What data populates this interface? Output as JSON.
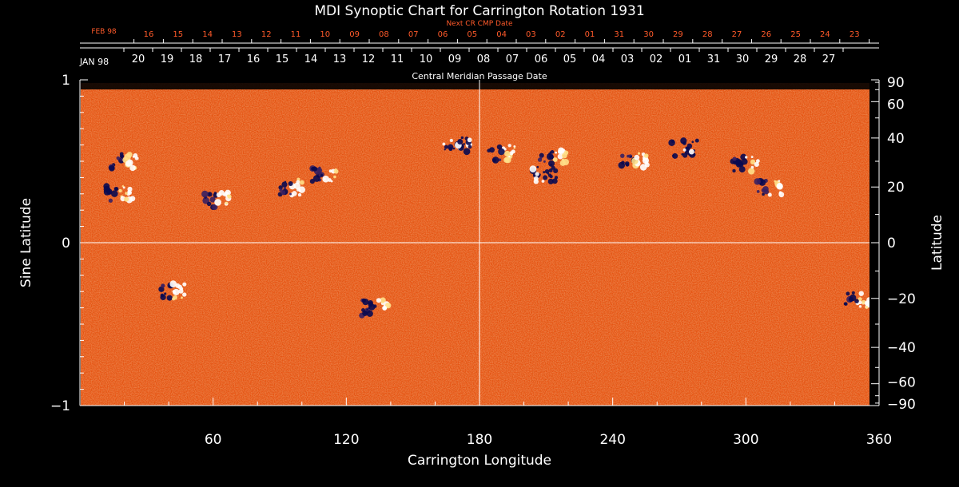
{
  "chart_data": {
    "type": "heatmap",
    "title": "MDI Synoptic Chart for Carrington Rotation 1931",
    "xlabel": "Carrington Longitude",
    "ylabel_left": "Sine Latitude",
    "ylabel_right": "Latitude",
    "xlim": [
      0,
      360
    ],
    "ylim_sine": [
      -1,
      1
    ],
    "x_ticks": [
      "60",
      "120",
      "180",
      "240",
      "300",
      "360"
    ],
    "y_left_ticks": [
      "1",
      "0",
      "−1"
    ],
    "y_right_ticks": [
      "90",
      "60",
      "40",
      "20",
      "0",
      "−20",
      "−40",
      "−60",
      "−90"
    ],
    "y_right_values": [
      90,
      60,
      40,
      20,
      0,
      -20,
      -40,
      -60,
      -90
    ],
    "central_meridian_label": "Central Meridian Passage Date",
    "cmp_month_label": "JAN 98",
    "cmp_dates": [
      "20",
      "19",
      "18",
      "17",
      "16",
      "15",
      "14",
      "13",
      "12",
      "11",
      "10",
      "09",
      "08",
      "07",
      "06",
      "05",
      "04",
      "03",
      "02",
      "01",
      "31",
      "30",
      "29",
      "28",
      "27"
    ],
    "next_cr_label": "Next CR CMP Date",
    "next_cr_month_label": "FEB 98",
    "next_cr_dates": [
      "16",
      "15",
      "14",
      "13",
      "12",
      "11",
      "10",
      "09",
      "08",
      "07",
      "06",
      "05",
      "04",
      "03",
      "02",
      "01",
      "31",
      "30",
      "29",
      "28",
      "27",
      "26",
      "25",
      "24",
      "23"
    ],
    "colors": {
      "background_field": "#e8500f",
      "positive_polarity": "#ffffff",
      "negative_polarity": "#0a0a50",
      "next_cr_text": "#ff5a2a",
      "axes": "#ffffff"
    },
    "active_regions": [
      {
        "lon": 20,
        "sinlat": 0.5,
        "polarity": "bipolar"
      },
      {
        "lon": 18,
        "sinlat": 0.3,
        "polarity": "bipolar"
      },
      {
        "lon": 62,
        "sinlat": 0.26,
        "polarity": "bipolar"
      },
      {
        "lon": 95,
        "sinlat": 0.34,
        "polarity": "bipolar"
      },
      {
        "lon": 110,
        "sinlat": 0.42,
        "polarity": "bipolar"
      },
      {
        "lon": 170,
        "sinlat": 0.6,
        "polarity": "negative"
      },
      {
        "lon": 190,
        "sinlat": 0.55,
        "polarity": "bipolar"
      },
      {
        "lon": 213,
        "sinlat": 0.52,
        "polarity": "bipolar"
      },
      {
        "lon": 210,
        "sinlat": 0.42,
        "polarity": "negative"
      },
      {
        "lon": 250,
        "sinlat": 0.5,
        "polarity": "bipolar"
      },
      {
        "lon": 272,
        "sinlat": 0.58,
        "polarity": "negative"
      },
      {
        "lon": 300,
        "sinlat": 0.48,
        "polarity": "bipolar"
      },
      {
        "lon": 310,
        "sinlat": 0.34,
        "polarity": "bipolar"
      },
      {
        "lon": 42,
        "sinlat": -0.3,
        "polarity": "bipolar"
      },
      {
        "lon": 133,
        "sinlat": -0.4,
        "polarity": "bipolar"
      },
      {
        "lon": 350,
        "sinlat": -0.35,
        "polarity": "bipolar"
      }
    ]
  }
}
